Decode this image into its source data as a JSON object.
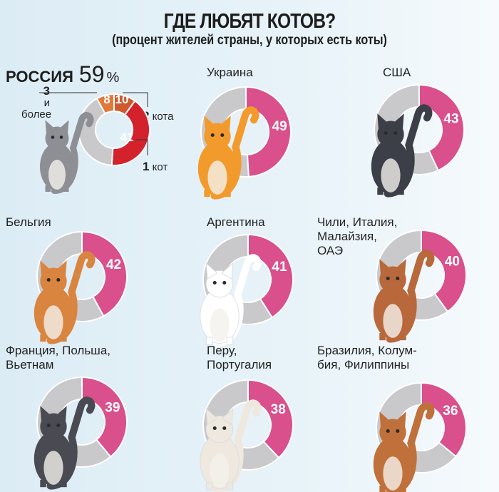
{
  "title": "ГДЕ ЛЮБЯТ КОТОВ?",
  "subtitle": "(процент жителей страны, у которых есть коты)",
  "colors": {
    "pink": "#d9508c",
    "gray": "#c9c9cb",
    "red": "#d3222c",
    "orange": "#e07a3c",
    "dark_orange": "#cf5a2e"
  },
  "russia": {
    "name": "РОССИЯ",
    "total": "59",
    "unit": "%",
    "legend": [
      {
        "num": "3",
        "text": "и более",
        "value": 8
      },
      {
        "num": "2",
        "text": "кота",
        "value": 10
      },
      {
        "num": "1",
        "text": "кот",
        "value": 41
      }
    ]
  },
  "chart_data": [
    {
      "type": "pie",
      "title": "РОССИЯ",
      "style": "donut",
      "categories": [
        "3 и более",
        "2 кота",
        "1 кот"
      ],
      "values": [
        8,
        10,
        41
      ],
      "total": 59
    },
    {
      "type": "pie",
      "style": "donut",
      "title": "Украина",
      "values": [
        49
      ]
    },
    {
      "type": "pie",
      "style": "donut",
      "title": "США",
      "values": [
        43
      ]
    },
    {
      "type": "pie",
      "style": "donut",
      "title": "Бельгия",
      "values": [
        42
      ]
    },
    {
      "type": "pie",
      "style": "donut",
      "title": "Аргентина",
      "values": [
        41
      ]
    },
    {
      "type": "pie",
      "style": "donut",
      "title": "Чили, Италия, Малайзия, ОАЭ",
      "values": [
        40
      ]
    },
    {
      "type": "pie",
      "style": "donut",
      "title": "Франция, Польша, Вьетнам",
      "values": [
        39
      ]
    },
    {
      "type": "pie",
      "style": "donut",
      "title": "Перу, Португалия",
      "values": [
        38
      ]
    },
    {
      "type": "pie",
      "style": "donut",
      "title": "Бразилия, Колумбия, Филиппины",
      "values": [
        36
      ]
    }
  ],
  "countries": [
    {
      "label": [
        "Украина"
      ],
      "value": "49",
      "cat": "#f39a2c"
    },
    {
      "label": [
        "США"
      ],
      "value": "43",
      "cat": "#3d3f48"
    },
    {
      "label": [
        "Бельгия"
      ],
      "value": "42",
      "cat": "#d9843f"
    },
    {
      "label": [
        "Аргентина"
      ],
      "value": "41",
      "cat": "#ffffff"
    },
    {
      "label": [
        "Чили, Италия,",
        "Малайзия,",
        "ОАЭ"
      ],
      "value": "40",
      "cat": "#b8683a"
    },
    {
      "label": [
        "Франция, Польша,",
        "Вьетнам"
      ],
      "value": "39",
      "cat": "#4a4b52"
    },
    {
      "label": [
        "Перу,",
        "Португалия"
      ],
      "value": "38",
      "cat": "#efe8df"
    },
    {
      "label": [
        "Бразилия, Колум-",
        "бия, Филиппины"
      ],
      "value": "36",
      "cat": "#c0703a"
    }
  ]
}
